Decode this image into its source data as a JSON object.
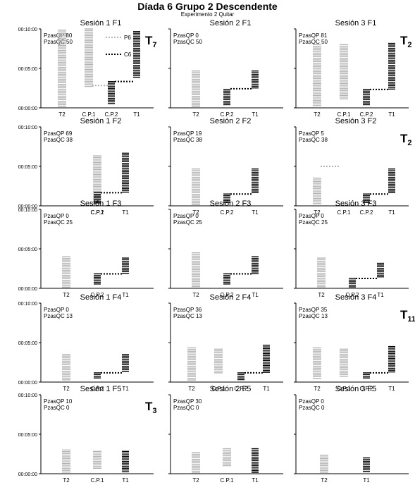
{
  "header": {
    "title": "Díada 6 Grupo 2 Descendente",
    "subtitle": "Experimento 2 Quitar"
  },
  "colors": {
    "gray": "#b4b4b4",
    "black": "#000000"
  },
  "chart_data": [
    {
      "type": "timeline",
      "title": "Sesión 1 F1",
      "yticks": [
        "00:10:00",
        "00:05:00",
        "00:00:00"
      ],
      "ylim": [
        0,
        600
      ],
      "categories": [
        "T2",
        "C.P.1",
        "C.P.2",
        "T1"
      ],
      "info": [
        "PzasQP 80",
        "PzasQC 50"
      ],
      "legend": [
        "P6",
        "C6"
      ],
      "badge": "T",
      "badge_sub": "7",
      "segments": [
        {
          "cat": 0,
          "color": "gray",
          "range": [
            10,
            590
          ]
        },
        {
          "cat": 1,
          "color": "gray",
          "range": [
            160,
            600
          ]
        },
        {
          "cat": 2,
          "color": "black",
          "range": [
            20,
            200
          ]
        },
        {
          "cat": 3,
          "color": "black",
          "range": [
            220,
            580
          ]
        }
      ],
      "links": [
        {
          "from": 1,
          "to": 2,
          "color": "gray",
          "at": 170
        },
        {
          "from": 2,
          "to": 3,
          "color": "black",
          "at": 200
        }
      ]
    },
    {
      "type": "timeline",
      "title": "Sesión 2 F1",
      "yticks": [
        "",
        "",
        ""
      ],
      "ylim": [
        0,
        600
      ],
      "categories": [
        "T2",
        "C.P.2",
        "T1"
      ],
      "info": [
        "PzasQP 0",
        "PzasQC 50"
      ],
      "badge": "",
      "badge_sub": "",
      "segments": [
        {
          "cat": 0,
          "color": "gray",
          "range": [
            5,
            280
          ]
        },
        {
          "cat": 1,
          "color": "black",
          "range": [
            15,
            140
          ]
        },
        {
          "cat": 2,
          "color": "black",
          "range": [
            150,
            280
          ]
        }
      ],
      "links": [
        {
          "from": 1,
          "to": 2,
          "color": "black",
          "at": 145
        }
      ]
    },
    {
      "type": "timeline",
      "title": "Sesión 3 F1",
      "yticks": [
        "",
        "",
        ""
      ],
      "ylim": [
        0,
        600
      ],
      "categories": [
        "T2",
        "C.P.1",
        "C.P.2",
        "T1"
      ],
      "info": [
        "PzasQP 81",
        "PzasQC 50"
      ],
      "badge": "T",
      "badge_sub": "2",
      "segments": [
        {
          "cat": 0,
          "color": "gray",
          "range": [
            10,
            480
          ]
        },
        {
          "cat": 1,
          "color": "gray",
          "range": [
            60,
            480
          ]
        },
        {
          "cat": 2,
          "color": "black",
          "range": [
            15,
            140
          ]
        },
        {
          "cat": 3,
          "color": "black",
          "range": [
            140,
            490
          ]
        }
      ],
      "links": [
        {
          "from": 2,
          "to": 3,
          "color": "black",
          "at": 140
        }
      ]
    },
    {
      "type": "timeline",
      "title": "Sesión 1 F2",
      "yticks": [
        "00:10:00",
        "00:05:00",
        "00:00:00"
      ],
      "ylim": [
        0,
        600
      ],
      "categories": [
        "C.P.1",
        "C.P.2",
        "T1"
      ],
      "info": [
        "PzasQP 69",
        "PzasQC 38"
      ],
      "badge": "",
      "badge_sub": "",
      "segments": [
        {
          "cat": 0,
          "color": "gray",
          "range": [
            10,
            380
          ]
        },
        {
          "cat": 1,
          "color": "black",
          "range": [
            15,
            100
          ]
        },
        {
          "cat": 2,
          "color": "black",
          "range": [
            100,
            400
          ]
        }
      ],
      "links": [
        {
          "from": 1,
          "to": 2,
          "color": "black",
          "at": 100
        }
      ]
    },
    {
      "type": "timeline",
      "title": "Sesión 2 F2",
      "yticks": [
        "",
        "",
        ""
      ],
      "ylim": [
        0,
        600
      ],
      "categories": [
        "T2",
        "C.P.2",
        "T1"
      ],
      "info": [
        "PzasQP 19",
        "PzasQC 38"
      ],
      "badge": "",
      "badge_sub": "",
      "segments": [
        {
          "cat": 0,
          "color": "gray",
          "range": [
            10,
            280
          ]
        },
        {
          "cat": 1,
          "color": "black",
          "range": [
            15,
            90
          ]
        },
        {
          "cat": 2,
          "color": "black",
          "range": [
            90,
            280
          ]
        }
      ],
      "links": [
        {
          "from": 1,
          "to": 2,
          "color": "black",
          "at": 90
        }
      ]
    },
    {
      "type": "timeline",
      "title": "Sesión 3 F2",
      "yticks": [
        "",
        "",
        ""
      ],
      "ylim": [
        0,
        600
      ],
      "categories": [
        "T2",
        "C.P.1",
        "C.P.2",
        "T1"
      ],
      "info": [
        "PzasQP 5",
        "PzasQC 38"
      ],
      "badge": "T",
      "badge_sub": "2",
      "segments": [
        {
          "cat": 0,
          "color": "gray",
          "range": [
            10,
            210
          ]
        },
        {
          "cat": 2,
          "color": "black",
          "range": [
            15,
            90
          ]
        },
        {
          "cat": 3,
          "color": "black",
          "range": [
            90,
            280
          ]
        }
      ],
      "links": [
        {
          "from": 0,
          "to": 1,
          "color": "gray",
          "at": 300
        },
        {
          "from": 2,
          "to": 3,
          "color": "black",
          "at": 90
        }
      ]
    },
    {
      "type": "timeline",
      "title": "Sesión 1 F3",
      "yticks": [
        "00:10:00",
        "00:05:00",
        "00:00:00"
      ],
      "ylim": [
        0,
        600
      ],
      "categories": [
        "T2",
        "C.P.2",
        "T1"
      ],
      "info": [
        "PzasQP 0",
        "PzasQC 25"
      ],
      "badge": "",
      "badge_sub": "",
      "segments": [
        {
          "cat": 0,
          "color": "gray",
          "range": [
            5,
            240
          ]
        },
        {
          "cat": 1,
          "color": "black",
          "range": [
            30,
            110
          ]
        },
        {
          "cat": 2,
          "color": "black",
          "range": [
            110,
            230
          ]
        }
      ],
      "links": [
        {
          "from": 1,
          "to": 2,
          "color": "black",
          "at": 110
        }
      ]
    },
    {
      "type": "timeline",
      "title": "Sesión 2 F3",
      "yticks": [
        "",
        "",
        ""
      ],
      "ylim": [
        0,
        600
      ],
      "categories": [
        "T2",
        "C.P.2",
        "T1"
      ],
      "info": [
        "PzasQP 0",
        "PzasQC 25"
      ],
      "badge": "",
      "badge_sub": "",
      "segments": [
        {
          "cat": 0,
          "color": "gray",
          "range": [
            5,
            270
          ]
        },
        {
          "cat": 1,
          "color": "black",
          "range": [
            30,
            110
          ]
        },
        {
          "cat": 2,
          "color": "black",
          "range": [
            110,
            240
          ]
        }
      ],
      "links": [
        {
          "from": 1,
          "to": 2,
          "color": "black",
          "at": 110
        }
      ]
    },
    {
      "type": "timeline",
      "title": "Sesión 3 F3",
      "yticks": [
        "",
        "",
        ""
      ],
      "ylim": [
        0,
        600
      ],
      "categories": [
        "T2",
        "C.P.2",
        "T1"
      ],
      "info": [
        "PzasQP 0",
        "PzasQC 25"
      ],
      "badge": "",
      "badge_sub": "",
      "segments": [
        {
          "cat": 0,
          "color": "gray",
          "range": [
            5,
            230
          ]
        },
        {
          "cat": 1,
          "color": "black",
          "range": [
            10,
            75
          ]
        },
        {
          "cat": 2,
          "color": "black",
          "range": [
            75,
            190
          ]
        }
      ],
      "links": [
        {
          "from": 1,
          "to": 2,
          "color": "black",
          "at": 75
        }
      ]
    },
    {
      "type": "timeline",
      "title": "Sesión 1 F4",
      "yticks": [
        "00:10:00",
        "00:05:00",
        "00:00:00"
      ],
      "ylim": [
        0,
        600
      ],
      "categories": [
        "T2",
        "C.P.2",
        "T1"
      ],
      "info": [
        "PzasQP 0",
        "PzasQC 13"
      ],
      "badge": "",
      "badge_sub": "",
      "segments": [
        {
          "cat": 0,
          "color": "gray",
          "range": [
            5,
            210
          ]
        },
        {
          "cat": 1,
          "color": "black",
          "range": [
            30,
            70
          ]
        },
        {
          "cat": 2,
          "color": "black",
          "range": [
            70,
            210
          ]
        }
      ],
      "links": [
        {
          "from": 1,
          "to": 2,
          "color": "black",
          "at": 70
        }
      ]
    },
    {
      "type": "timeline",
      "title": "Sesión 2 F4",
      "yticks": [
        "",
        "",
        ""
      ],
      "ylim": [
        0,
        600
      ],
      "categories": [
        "T2",
        "C.P.1",
        "C.P.2",
        "T1"
      ],
      "info": [
        "PzasQP 36",
        "PzasQC 13"
      ],
      "badge": "",
      "badge_sub": "",
      "segments": [
        {
          "cat": 0,
          "color": "gray",
          "range": [
            5,
            260
          ]
        },
        {
          "cat": 1,
          "color": "gray",
          "range": [
            60,
            250
          ]
        },
        {
          "cat": 2,
          "color": "black",
          "range": [
            15,
            70
          ]
        },
        {
          "cat": 3,
          "color": "black",
          "range": [
            70,
            280
          ]
        }
      ],
      "links": [
        {
          "from": 2,
          "to": 3,
          "color": "black",
          "at": 70
        }
      ]
    },
    {
      "type": "timeline",
      "title": "Sesión 3 F4",
      "yticks": [
        "",
        "",
        ""
      ],
      "ylim": [
        0,
        600
      ],
      "categories": [
        "T2",
        "C.P.1",
        "C.P.2",
        "T1"
      ],
      "info": [
        "PzasQP 35",
        "PzasQC 13"
      ],
      "badge": "T",
      "badge_sub": "11",
      "segments": [
        {
          "cat": 0,
          "color": "gray",
          "range": [
            20,
            260
          ]
        },
        {
          "cat": 1,
          "color": "gray",
          "range": [
            40,
            250
          ]
        },
        {
          "cat": 2,
          "color": "black",
          "range": [
            20,
            70
          ]
        },
        {
          "cat": 3,
          "color": "black",
          "range": [
            70,
            270
          ]
        }
      ],
      "links": [
        {
          "from": 2,
          "to": 3,
          "color": "black",
          "at": 70
        }
      ]
    },
    {
      "type": "timeline",
      "title": "Sesión 1 F5",
      "yticks": [
        "00:10:00",
        "00:05:00",
        "00:00:00"
      ],
      "ylim": [
        0,
        600
      ],
      "categories": [
        "T2",
        "C.P.1",
        "T1"
      ],
      "info": [
        "PzasQP 10",
        "PzasQC 0"
      ],
      "badge": "T",
      "badge_sub": "3",
      "segments": [
        {
          "cat": 0,
          "color": "gray",
          "range": [
            5,
            180
          ]
        },
        {
          "cat": 1,
          "color": "gray",
          "range": [
            30,
            170
          ]
        },
        {
          "cat": 2,
          "color": "black",
          "range": [
            5,
            170
          ]
        }
      ],
      "links": []
    },
    {
      "type": "timeline",
      "title": "Sesión 2 F5",
      "yticks": [
        "",
        "",
        ""
      ],
      "ylim": [
        0,
        600
      ],
      "categories": [
        "T2",
        "C.P.1",
        "T1"
      ],
      "info": [
        "PzasQP 30",
        "PzasQC 0"
      ],
      "badge": "",
      "badge_sub": "",
      "segments": [
        {
          "cat": 0,
          "color": "gray",
          "range": [
            5,
            160
          ]
        },
        {
          "cat": 1,
          "color": "gray",
          "range": [
            60,
            190
          ]
        },
        {
          "cat": 2,
          "color": "black",
          "range": [
            5,
            190
          ]
        }
      ],
      "links": []
    },
    {
      "type": "timeline",
      "title": "Sesión 3 F5",
      "yticks": [
        "",
        "",
        ""
      ],
      "ylim": [
        0,
        600
      ],
      "categories": [
        "T2",
        "T1"
      ],
      "info": [
        "PzasQP 0",
        "PzasQC 0"
      ],
      "badge": "",
      "badge_sub": "",
      "segments": [
        {
          "cat": 0,
          "color": "gray",
          "range": [
            5,
            140
          ]
        },
        {
          "cat": 1,
          "color": "black",
          "range": [
            5,
            120
          ]
        }
      ],
      "links": []
    }
  ]
}
